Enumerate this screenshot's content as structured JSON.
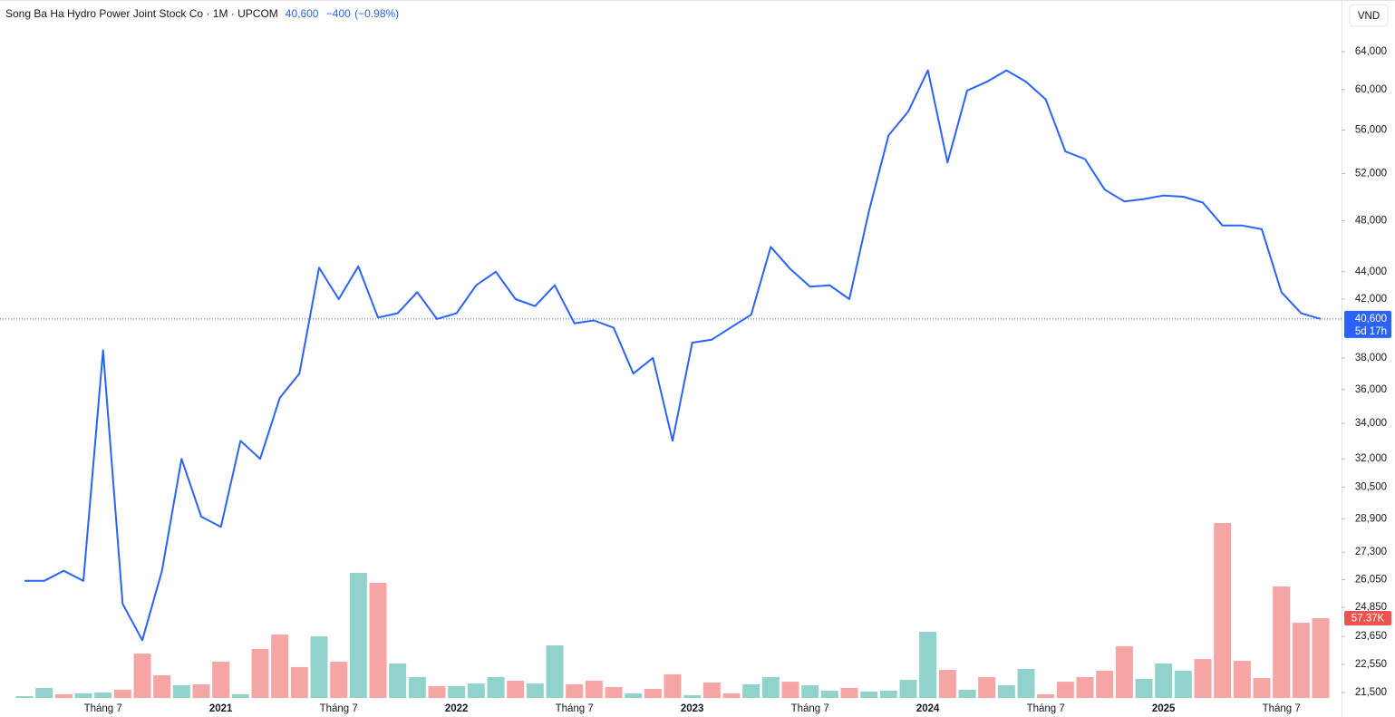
{
  "chart_data": {
    "type": "line",
    "title": "Song Ba Ha Hydro Power Joint Stock Co · 1M · UPCOM",
    "last_price": {
      "value": 40600,
      "label": "40,600"
    },
    "change": {
      "value": -400,
      "label": "−400"
    },
    "change_pct": {
      "value": -0.98,
      "label": "(−0.98%)"
    },
    "countdown": "5d 17h",
    "currency": "VND",
    "log_scale": true,
    "ylim": [
      21300,
      65800
    ],
    "yticks": [
      {
        "value": 64000,
        "label": "64,000"
      },
      {
        "value": 60000,
        "label": "60,000"
      },
      {
        "value": 56000,
        "label": "56,000"
      },
      {
        "value": 52000,
        "label": "52,000"
      },
      {
        "value": 48000,
        "label": "48,000"
      },
      {
        "value": 44000,
        "label": "44,000"
      },
      {
        "value": 42000,
        "label": "42,000"
      },
      {
        "value": 38000,
        "label": "38,000"
      },
      {
        "value": 36000,
        "label": "36,000"
      },
      {
        "value": 34000,
        "label": "34,000"
      },
      {
        "value": 32000,
        "label": "32,000"
      },
      {
        "value": 30500,
        "label": "30,500"
      },
      {
        "value": 28900,
        "label": "28,900"
      },
      {
        "value": 27300,
        "label": "27,300"
      },
      {
        "value": 26050,
        "label": "26,050"
      },
      {
        "value": 24850,
        "label": "24,850"
      },
      {
        "value": 23650,
        "label": "23,650"
      },
      {
        "value": 22550,
        "label": "22,550"
      },
      {
        "value": 21500,
        "label": "21,500"
      }
    ],
    "y2lim": [
      0,
      200000
    ],
    "categories": [
      null,
      null,
      null,
      null,
      "Tháng 7",
      null,
      null,
      null,
      null,
      null,
      "2021",
      null,
      null,
      null,
      null,
      null,
      "Tháng 7",
      null,
      null,
      null,
      null,
      null,
      "2022",
      null,
      null,
      null,
      null,
      null,
      "Tháng 7",
      null,
      null,
      null,
      null,
      null,
      "2023",
      null,
      null,
      null,
      null,
      null,
      "Tháng 7",
      null,
      null,
      null,
      null,
      null,
      "2024",
      null,
      null,
      null,
      null,
      null,
      "Tháng 7",
      null,
      null,
      null,
      null,
      null,
      "2025",
      null,
      null,
      null,
      null,
      null,
      "Tháng 7",
      null,
      null
    ],
    "series": [
      {
        "type": "line",
        "color": "#2962ff",
        "values": [
          26000,
          26000,
          26450,
          26000,
          38500,
          25000,
          23500,
          26450,
          32000,
          29000,
          28500,
          33000,
          32000,
          35500,
          37000,
          44300,
          42000,
          44400,
          40700,
          41000,
          42500,
          40600,
          41000,
          43000,
          44000,
          42000,
          41500,
          43000,
          40300,
          40500,
          40000,
          37000,
          38000,
          33000,
          39000,
          39200,
          40050,
          40900,
          45900,
          44200,
          42900,
          43000,
          42000,
          48800,
          55500,
          57800,
          62000,
          53000,
          59900,
          60800,
          62000,
          60800,
          59000,
          54000,
          53300,
          50600,
          49600,
          49800,
          50100,
          50000,
          49500,
          47600,
          47600,
          47300,
          42500,
          41000,
          40600
        ]
      },
      {
        "type": "bar",
        "axis": "y2",
        "values": [
          1300,
          7200,
          2600,
          3300,
          3900,
          5900,
          31900,
          16300,
          9100,
          9800,
          26100,
          2600,
          35200,
          45600,
          22200,
          44300,
          26100,
          90000,
          82800,
          24800,
          15000,
          8500,
          8500,
          10400,
          15000,
          12400,
          10400,
          37800,
          9800,
          12400,
          7800,
          3300,
          6500,
          17000,
          2000,
          11100,
          3300,
          9800,
          15000,
          11700,
          9100,
          5200,
          7200,
          4600,
          5200,
          13000,
          47600,
          20200,
          5900,
          15000,
          9100,
          20900,
          2600,
          11700,
          15000,
          19600,
          37200,
          13700,
          24800,
          19600,
          28000,
          125800,
          26700,
          14300,
          80200,
          54100,
          57370
        ],
        "colors": [
          "#91d3cc",
          "#91d3cc",
          "#f5a6a4",
          "#91d3cc",
          "#91d3cc",
          "#f5a6a4",
          "#f5a6a4",
          "#f5a6a4",
          "#91d3cc",
          "#f5a6a4",
          "#f5a6a4",
          "#91d3cc",
          "#f5a6a4",
          "#f5a6a4",
          "#f5a6a4",
          "#91d3cc",
          "#f5a6a4",
          "#91d3cc",
          "#f5a6a4",
          "#91d3cc",
          "#91d3cc",
          "#f5a6a4",
          "#91d3cc",
          "#91d3cc",
          "#91d3cc",
          "#f5a6a4",
          "#91d3cc",
          "#91d3cc",
          "#f5a6a4",
          "#f5a6a4",
          "#f5a6a4",
          "#91d3cc",
          "#f5a6a4",
          "#f5a6a4",
          "#91d3cc",
          "#f5a6a4",
          "#f5a6a4",
          "#91d3cc",
          "#91d3cc",
          "#f5a6a4",
          "#91d3cc",
          "#91d3cc",
          "#f5a6a4",
          "#91d3cc",
          "#91d3cc",
          "#91d3cc",
          "#91d3cc",
          "#f5a6a4",
          "#91d3cc",
          "#f5a6a4",
          "#91d3cc",
          "#91d3cc",
          "#f5a6a4",
          "#f5a6a4",
          "#f5a6a4",
          "#f5a6a4",
          "#f5a6a4",
          "#91d3cc",
          "#91d3cc",
          "#91d3cc",
          "#f5a6a4",
          "#f5a6a4",
          "#f5a6a4",
          "#f5a6a4",
          "#f5a6a4",
          "#f5a6a4",
          "#f5a6a4"
        ],
        "last_label": {
          "value": 57370,
          "label": "57.37K"
        },
        "marker_color": "#ef5350"
      }
    ]
  }
}
